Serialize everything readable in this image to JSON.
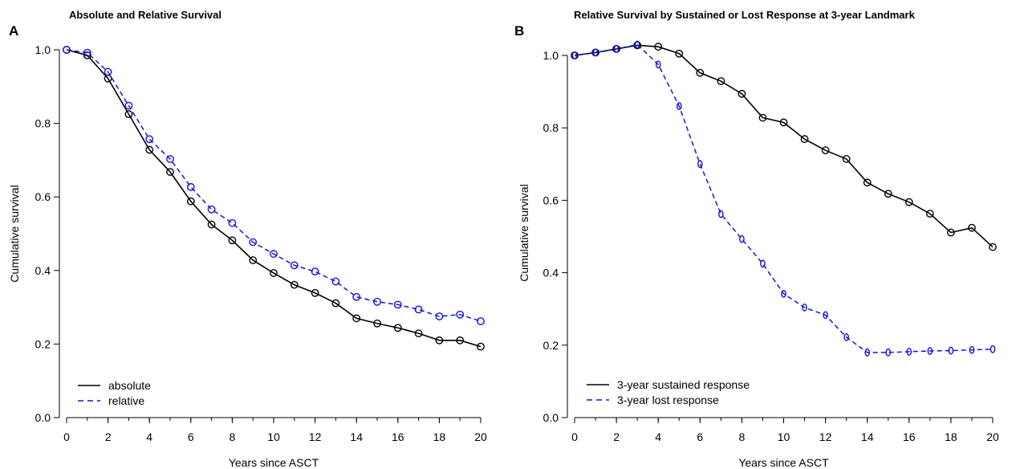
{
  "chart_data": [
    {
      "panel_label": "A",
      "type": "line",
      "title": "Absolute and Relative Survival",
      "xlabel": "Years since ASCT",
      "ylabel": "Cumulative survival",
      "xlim": [
        0,
        20
      ],
      "ylim": [
        0,
        1
      ],
      "xticks": [
        0,
        2,
        4,
        6,
        8,
        10,
        12,
        14,
        16,
        18,
        20
      ],
      "yticks": [
        0.0,
        0.2,
        0.4,
        0.6,
        0.8,
        1.0
      ],
      "ytick_labels": [
        "0.0",
        "0.2",
        "0.4",
        "0.6",
        "0.8",
        "1.0"
      ],
      "grid": false,
      "legend_position": "bottom-left",
      "x": [
        0,
        1,
        2,
        3,
        4,
        5,
        6,
        7,
        8,
        9,
        10,
        11,
        12,
        13,
        14,
        15,
        16,
        17,
        18,
        19,
        20
      ],
      "series": [
        {
          "name": "absolute",
          "color": "#000000",
          "style": "solid",
          "values": [
            1.0,
            0.985,
            0.922,
            0.825,
            0.728,
            0.668,
            0.588,
            0.525,
            0.482,
            0.428,
            0.393,
            0.361,
            0.339,
            0.311,
            0.27,
            0.256,
            0.244,
            0.229,
            0.21,
            0.21,
            0.193
          ]
        },
        {
          "name": "relative",
          "color": "#1515d6",
          "style": "dashed",
          "values": [
            1.0,
            0.992,
            0.94,
            0.848,
            0.757,
            0.703,
            0.627,
            0.566,
            0.529,
            0.477,
            0.445,
            0.414,
            0.397,
            0.37,
            0.328,
            0.315,
            0.307,
            0.294,
            0.275,
            0.28,
            0.262
          ]
        }
      ]
    },
    {
      "panel_label": "B",
      "type": "line",
      "title": "Relative Survival by Sustained or Lost Response at 3-year Landmark",
      "xlabel": "Years since ASCT",
      "ylabel": "Cumulative survival",
      "xlim": [
        0,
        20
      ],
      "ylim": [
        0,
        1.02
      ],
      "xticks": [
        0,
        2,
        4,
        6,
        8,
        10,
        12,
        14,
        16,
        18,
        20
      ],
      "yticks": [
        0.0,
        0.2,
        0.4,
        0.6,
        0.8,
        1.0
      ],
      "ytick_labels": [
        "0.0",
        "0.2",
        "0.4",
        "0.6",
        "0.8",
        "1.0"
      ],
      "grid": false,
      "legend_position": "bottom-left",
      "x": [
        0,
        1,
        2,
        3,
        4,
        5,
        6,
        7,
        8,
        9,
        10,
        11,
        12,
        13,
        14,
        15,
        16,
        17,
        18,
        19,
        20
      ],
      "series": [
        {
          "name": "3-year sustained response",
          "color": "#000000",
          "style": "solid",
          "values": [
            1.0,
            1.008,
            1.018,
            1.028,
            1.024,
            1.005,
            0.952,
            0.929,
            0.894,
            0.828,
            0.815,
            0.769,
            0.738,
            0.714,
            0.649,
            0.618,
            0.595,
            0.563,
            0.511,
            0.524,
            0.471
          ]
        },
        {
          "name": "3-year lost response",
          "color": "#1515d6",
          "style": "dashed",
          "values": [
            1.0,
            1.008,
            1.018,
            1.03,
            0.975,
            0.86,
            0.7,
            0.562,
            0.493,
            0.425,
            0.342,
            0.304,
            0.283,
            0.222,
            0.18,
            0.18,
            0.182,
            0.184,
            0.185,
            0.187,
            0.189
          ]
        }
      ]
    }
  ]
}
